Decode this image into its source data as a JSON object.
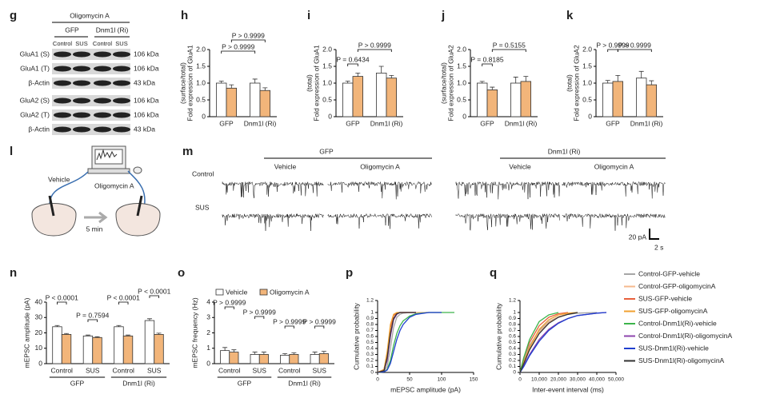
{
  "figure": {
    "letters": [
      "g",
      "h",
      "i",
      "j",
      "k",
      "l",
      "m",
      "n",
      "o",
      "p",
      "q"
    ],
    "blot": {
      "treatment": "Oligomycin A",
      "groups": [
        "GFP",
        "Dnm1l (Ri)"
      ],
      "lanes": [
        "Control",
        "SUS",
        "Control",
        "SUS"
      ],
      "rows": [
        "GluA1 (S)",
        "GluA1 (T)",
        "β-Actin",
        "GluA2 (S)",
        "GluA2 (T)",
        "β-Actin"
      ],
      "sizes": [
        "106 kDa",
        "106 kDa",
        "43 kDa",
        "106 kDa",
        "106 kDa",
        "43 kDa"
      ]
    },
    "schematic": {
      "vehicle": "Vehicle",
      "drug": "Oligomycin A",
      "time": "5 min"
    },
    "traces": {
      "groups": [
        "GFP",
        "Dnm1l (Ri)"
      ],
      "conditions": [
        "Vehicle",
        "Oligomycin A",
        "Vehicle",
        "Oligomycin A"
      ],
      "rows": [
        "Control",
        "SUS"
      ],
      "scale_y": "20 pA",
      "scale_x": "2 s"
    }
  },
  "chart_data": [
    {
      "type": "bar",
      "ylabel": [
        "Fold expression of GluA1",
        "(surface/total)"
      ],
      "categories": [
        "GFP",
        "Dnm1l (Ri)"
      ],
      "series": [
        {
          "color": "#ffffff",
          "values": [
            1.0,
            1.0
          ],
          "errors": [
            0.06,
            0.12
          ]
        },
        {
          "color": "#f2b57a",
          "values": [
            0.85,
            0.78
          ],
          "errors": [
            0.1,
            0.08
          ]
        }
      ],
      "ylim": [
        0,
        2
      ],
      "yticks": [
        0,
        0.5,
        {
          "value": 1,
          "label": "1.0"
        },
        1.5,
        {
          "value": 2,
          "label": "2.0"
        }
      ],
      "annotations": [
        "P > 0.9999",
        "P > 0.9999"
      ]
    },
    {
      "type": "bar",
      "ylabel": [
        "Fold expression of GluA1",
        "(total)"
      ],
      "categories": [
        "GFP",
        "Dnm1l (Ri)"
      ],
      "series": [
        {
          "color": "#ffffff",
          "values": [
            1.0,
            1.3
          ],
          "errors": [
            0.06,
            0.2
          ]
        },
        {
          "color": "#f2b57a",
          "values": [
            1.2,
            1.15
          ],
          "errors": [
            0.1,
            0.08
          ]
        }
      ],
      "ylim": [
        0,
        2
      ],
      "yticks": [
        0,
        0.5,
        {
          "value": 1,
          "label": "1.0"
        },
        1.5,
        {
          "value": 2,
          "label": "2.0"
        }
      ],
      "annotations": [
        "P = 0.6434",
        "P > 0.9999"
      ]
    },
    {
      "type": "bar",
      "ylabel": [
        "Fold expression of GluA2",
        "(surface/total)"
      ],
      "categories": [
        "GFP",
        "Dnm1l (Ri)"
      ],
      "series": [
        {
          "color": "#ffffff",
          "values": [
            1.0,
            1.0
          ],
          "errors": [
            0.05,
            0.18
          ]
        },
        {
          "color": "#f2b57a",
          "values": [
            0.8,
            1.05
          ],
          "errors": [
            0.08,
            0.15
          ]
        }
      ],
      "ylim": [
        0,
        2
      ],
      "yticks": [
        0,
        0.5,
        {
          "value": 1,
          "label": "1.0"
        },
        1.5,
        {
          "value": 2,
          "label": "2.0"
        }
      ],
      "annotations": [
        "P = 0.8185",
        "P = 0.5155"
      ]
    },
    {
      "type": "bar",
      "ylabel": [
        "Fold expression of GluA2",
        "(total)"
      ],
      "categories": [
        "GFP",
        "Dnm1l (Ri)"
      ],
      "series": [
        {
          "color": "#ffffff",
          "values": [
            1.0,
            1.15
          ],
          "errors": [
            0.08,
            0.2
          ]
        },
        {
          "color": "#f2b57a",
          "values": [
            1.05,
            0.95
          ],
          "errors": [
            0.18,
            0.12
          ]
        }
      ],
      "ylim": [
        0,
        2
      ],
      "yticks": [
        0,
        0.5,
        {
          "value": 1,
          "label": "1.0"
        },
        1.5,
        {
          "value": 2,
          "label": "2.0"
        }
      ],
      "annotations": [
        "P > 0.9999",
        "P > 0.9999"
      ]
    },
    {
      "type": "bar",
      "ylabel": [
        "mEPSC amplitude (pA)"
      ],
      "categories": [
        "Control",
        "SUS",
        "Control",
        "SUS"
      ],
      "groups": [
        "GFP",
        "Dnm1l (Ri)"
      ],
      "series": [
        {
          "color": "#ffffff",
          "values": [
            24,
            18,
            24,
            28
          ],
          "errors": [
            0.8,
            0.6,
            0.8,
            1.2
          ]
        },
        {
          "color": "#f2b57a",
          "values": [
            19,
            17,
            18,
            19
          ],
          "errors": [
            0.6,
            0.5,
            0.6,
            0.8
          ]
        }
      ],
      "ylim": [
        0,
        40
      ],
      "yticks": [
        0,
        10,
        20,
        30,
        40
      ],
      "annotations": [
        "P < 0.0001",
        "P = 0.7594",
        "P < 0.0001",
        "P < 0.0001"
      ]
    },
    {
      "type": "bar",
      "ylabel": [
        "mEPSC frequency (Hz)"
      ],
      "categories": [
        "Control",
        "SUS",
        "Control",
        "SUS"
      ],
      "groups": [
        "GFP",
        "Dnm1l (Ri)"
      ],
      "series": [
        {
          "name": "Vehicle",
          "color": "#ffffff",
          "values": [
            0.85,
            0.6,
            0.55,
            0.6
          ],
          "errors": [
            0.2,
            0.15,
            0.1,
            0.15
          ]
        },
        {
          "name": "Oligomycin A",
          "color": "#f2b57a",
          "values": [
            0.75,
            0.6,
            0.6,
            0.65
          ],
          "errors": [
            0.15,
            0.15,
            0.1,
            0.15
          ]
        }
      ],
      "ylim": [
        0,
        4
      ],
      "yticks": [
        0,
        1,
        2,
        3,
        4
      ],
      "legend": "top",
      "annotations": [
        "P > 0.9999",
        "P > 0.9999",
        "P > 0.9999",
        "P > 0.9999"
      ]
    },
    {
      "type": "line",
      "xlabel": "mEPSC amplitude (pA)",
      "ylabel": "Cumulative probability",
      "x": [
        0,
        10,
        15,
        20,
        25,
        30,
        35,
        40,
        50,
        60,
        80,
        100,
        120
      ],
      "series": [
        {
          "color": "#a6a6a6",
          "values": [
            0,
            0.02,
            0.1,
            0.4,
            0.75,
            0.92,
            0.97,
            0.99,
            1,
            1,
            1,
            1,
            null
          ]
        },
        {
          "color": "#f6b98e",
          "values": [
            0,
            0.03,
            0.2,
            0.6,
            0.9,
            0.98,
            1,
            1,
            1,
            1,
            1,
            null,
            null
          ]
        },
        {
          "color": "#e8603c",
          "values": [
            0,
            0.05,
            0.3,
            0.75,
            0.95,
            0.99,
            1,
            1,
            1,
            1,
            null,
            null,
            null
          ]
        },
        {
          "color": "#f0a030",
          "values": [
            0,
            0.05,
            0.35,
            0.8,
            0.97,
            1,
            1,
            1,
            1,
            null,
            null,
            null,
            null
          ]
        },
        {
          "color": "#3cb44b",
          "values": [
            0,
            0.01,
            0.05,
            0.2,
            0.45,
            0.65,
            0.78,
            0.86,
            0.94,
            0.98,
            1,
            1,
            1
          ]
        },
        {
          "color": "#8e44ad",
          "values": [
            0,
            0.03,
            0.2,
            0.6,
            0.88,
            0.97,
            1,
            1,
            1,
            1,
            null,
            null,
            null
          ]
        },
        {
          "color": "#1f3fcf",
          "values": [
            0,
            0.01,
            0.04,
            0.15,
            0.35,
            0.55,
            0.7,
            0.8,
            0.92,
            0.97,
            1,
            1,
            null
          ]
        },
        {
          "color": "#333333",
          "values": [
            0,
            0.03,
            0.25,
            0.65,
            0.9,
            0.98,
            1,
            1,
            1,
            1,
            null,
            null,
            null
          ]
        }
      ],
      "xlim": [
        0,
        150
      ],
      "xticks": [
        0,
        50,
        100,
        150
      ],
      "ylim": [
        0,
        1.2
      ],
      "yticks": [
        0,
        0.1,
        0.2,
        0.3,
        0.4,
        0.5,
        0.6,
        0.7,
        0.8,
        0.9,
        1,
        1.2
      ]
    },
    {
      "type": "line",
      "xlabel": "Inter-event interval (ms)",
      "ylabel": "Cumulative probability",
      "x": [
        0,
        2000,
        5000,
        10000,
        15000,
        20000,
        25000,
        30000,
        40000,
        45000
      ],
      "series": [
        {
          "name": "Control-GFP-vehicle",
          "color": "#a6a6a6",
          "values": [
            0,
            0.2,
            0.45,
            0.7,
            0.85,
            0.93,
            0.97,
            0.99,
            1,
            null
          ]
        },
        {
          "name": "Control-GFP-oligomycinA",
          "color": "#f6b98e",
          "values": [
            0,
            0.15,
            0.4,
            0.68,
            0.84,
            0.93,
            0.98,
            1,
            null,
            null
          ]
        },
        {
          "name": "SUS-GFP-vehicle",
          "color": "#e8603c",
          "values": [
            0,
            0.25,
            0.5,
            0.78,
            0.92,
            0.98,
            1,
            null,
            null,
            null
          ]
        },
        {
          "name": "SUS-GFP-oligomycinA",
          "color": "#f0a030",
          "values": [
            0,
            0.18,
            0.42,
            0.72,
            0.88,
            0.96,
            0.99,
            1,
            null,
            null
          ]
        },
        {
          "name": "Control-Dnm1l(Ri)-vehicle",
          "color": "#3cb44b",
          "values": [
            0,
            0.25,
            0.55,
            0.85,
            0.96,
            1,
            null,
            null,
            null,
            null
          ]
        },
        {
          "name": "Control-Dnm1l(Ri)-oligomycinA",
          "color": "#8e44ad",
          "values": [
            0,
            0.12,
            0.3,
            0.55,
            0.72,
            0.83,
            0.9,
            0.95,
            0.99,
            1
          ]
        },
        {
          "name": "SUS-Dnm1l(Ri)-vehicle",
          "color": "#1f3fcf",
          "values": [
            0,
            0.1,
            0.28,
            0.52,
            0.7,
            0.82,
            0.9,
            0.95,
            0.99,
            1
          ]
        },
        {
          "name": "SUS-Dnm1l(Ri)-oligomycinA",
          "color": "#333333",
          "values": [
            0,
            0.15,
            0.38,
            0.65,
            0.82,
            0.92,
            0.97,
            1,
            null,
            null
          ]
        }
      ],
      "xlim": [
        0,
        50000
      ],
      "xticks": [
        0,
        {
          "value": 10000,
          "label": "10,000"
        },
        {
          "value": 20000,
          "label": "20,000"
        },
        {
          "value": 30000,
          "label": "30,000"
        },
        {
          "value": 40000,
          "label": "40,000"
        },
        {
          "value": 50000,
          "label": "50,000"
        }
      ],
      "ylim": [
        0,
        1.2
      ],
      "yticks": [
        0,
        0.1,
        0.2,
        0.3,
        0.4,
        0.5,
        0.6,
        0.7,
        0.8,
        0.9,
        1,
        1.2
      ],
      "legend": "right"
    }
  ]
}
